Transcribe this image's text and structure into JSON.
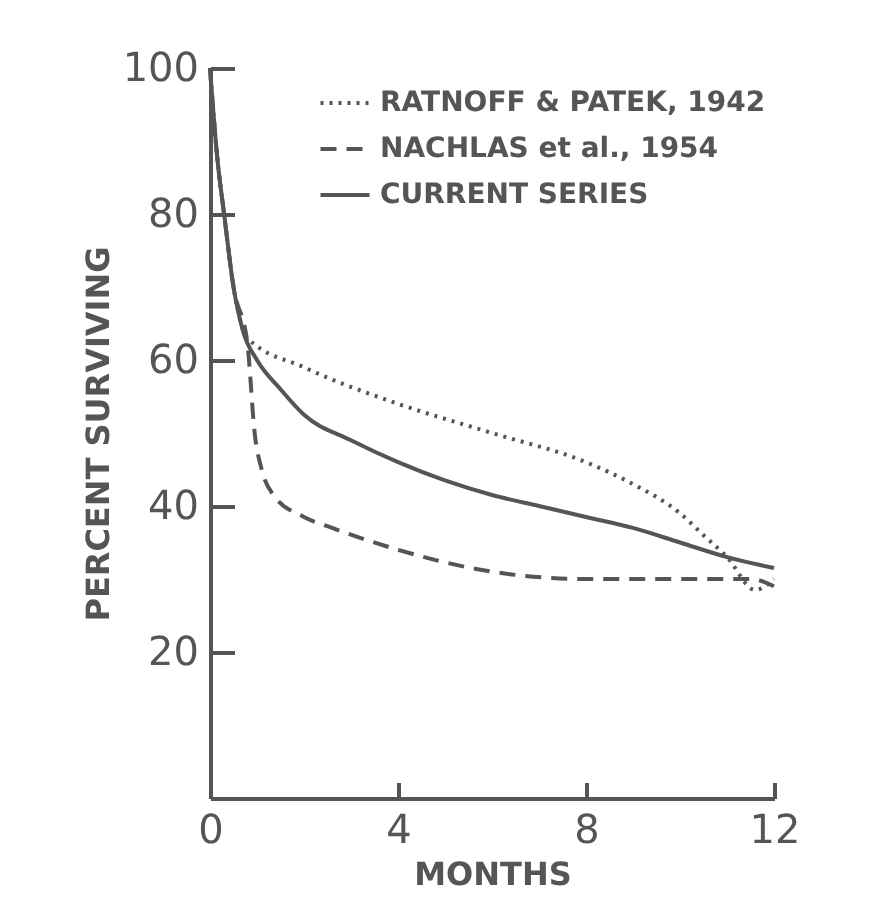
{
  "chart_data": {
    "type": "line",
    "xlabel": "MONTHS",
    "ylabel": "PERCENT SURVIVING",
    "series": [
      {
        "name": "RATNOFF & PATEK, 1942",
        "color": "#555555",
        "line_style": "dotted",
        "x": [
          0,
          0.15,
          0.3,
          0.5,
          0.8,
          2,
          4,
          6,
          8,
          9,
          10,
          10.5,
          11,
          11.6,
          12
        ],
        "values": [
          100,
          88,
          80,
          70,
          63,
          59,
          54,
          50,
          46,
          43,
          39,
          36,
          33,
          28.5,
          30
        ]
      },
      {
        "name": "NACHLAS et al., 1954",
        "color": "#555555",
        "line_style": "dashed",
        "x": [
          0,
          0.15,
          0.3,
          0.5,
          0.8,
          0.95,
          1.1,
          1.35,
          2,
          2.6,
          4,
          6,
          8,
          10,
          11.5,
          12
        ],
        "values": [
          100,
          88,
          80,
          70,
          62,
          50,
          45,
          41.5,
          38.5,
          37,
          34,
          31,
          30,
          30,
          30,
          29
        ]
      },
      {
        "name": "CURRENT SERIES",
        "color": "#555555",
        "line_style": "solid",
        "x": [
          0,
          0.15,
          0.3,
          0.5,
          0.7,
          1,
          1.5,
          2,
          3,
          4,
          5,
          6,
          7,
          8,
          9,
          10,
          11,
          12
        ],
        "values": [
          100,
          88,
          80,
          70,
          64,
          60,
          56,
          52.5,
          49,
          46,
          43.5,
          41.5,
          40,
          38.5,
          37,
          35,
          33,
          31.5
        ]
      }
    ],
    "xlim": [
      0,
      12
    ],
    "ylim": [
      0,
      100
    ],
    "xticks": [
      0,
      4,
      8,
      12
    ],
    "yticks": [
      20,
      40,
      60,
      80,
      100
    ],
    "grid": false,
    "legend": "top right"
  }
}
